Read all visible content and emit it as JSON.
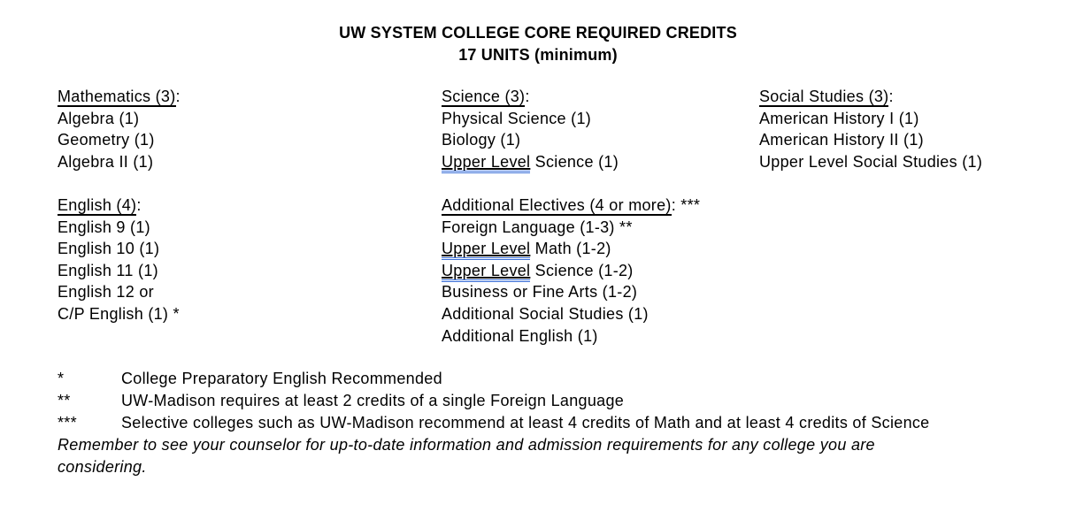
{
  "title": {
    "line1": "UW SYSTEM COLLEGE CORE REQUIRED CREDITS",
    "line2": "17 UNITS (minimum)"
  },
  "sections": [
    {
      "heading": "Mathematics (3)",
      "suffix": ":",
      "items": [
        {
          "text": "Algebra (1)"
        },
        {
          "text": "Geometry (1)"
        },
        {
          "text": "Algebra II (1)"
        }
      ]
    },
    {
      "heading": "English (4)",
      "suffix": ":",
      "items": [
        {
          "text": "English 9 (1)"
        },
        {
          "text": "English 10 (1)"
        },
        {
          "text": "English 11 (1)"
        },
        {
          "text": "English 12 or"
        },
        {
          "text": "C/P English (1) *"
        }
      ]
    },
    {
      "heading": "Science (3)",
      "suffix": ":",
      "items": [
        {
          "text": "Physical Science (1)"
        },
        {
          "text": "Biology (1)"
        },
        {
          "flagged": "Upper Level",
          "rest": " Science (1)"
        }
      ]
    },
    {
      "heading": "Additional Electives (4 or more)",
      "suffix": ": ***",
      "items": [
        {
          "text": "Foreign Language (1-3) **"
        },
        {
          "flagged": "Upper Level",
          "rest": " Math (1-2)"
        },
        {
          "flagged": "Upper Level",
          "rest": " Science (1-2)"
        },
        {
          "text": "Business or Fine Arts (1-2)"
        },
        {
          "text": "Additional Social Studies (1)"
        },
        {
          "text": "Additional English (1)"
        }
      ]
    },
    {
      "heading": "Social Studies (3)",
      "suffix": ":",
      "items": [
        {
          "text": "American History I (1)"
        },
        {
          "text": "American History II (1)"
        },
        {
          "text": "Upper Level Social Studies (1)"
        }
      ]
    }
  ],
  "footnotes": [
    {
      "marker": "*",
      "text": "College Preparatory English Recommended"
    },
    {
      "marker": "**",
      "text": "UW-Madison requires at least 2 credits of a single Foreign Language"
    },
    {
      "marker": "***",
      "text": "Selective colleges such as UW-Madison recommend at least 4 credits of Math and at least 4 credits of Science"
    }
  ],
  "note": "Remember to see your counselor for up-to-date information and admission requirements for any college you are considering.",
  "colors": {
    "text": "#000000",
    "background": "#ffffff",
    "heading_underline": "#000000",
    "grammar_underline": "#3a6fd8"
  }
}
